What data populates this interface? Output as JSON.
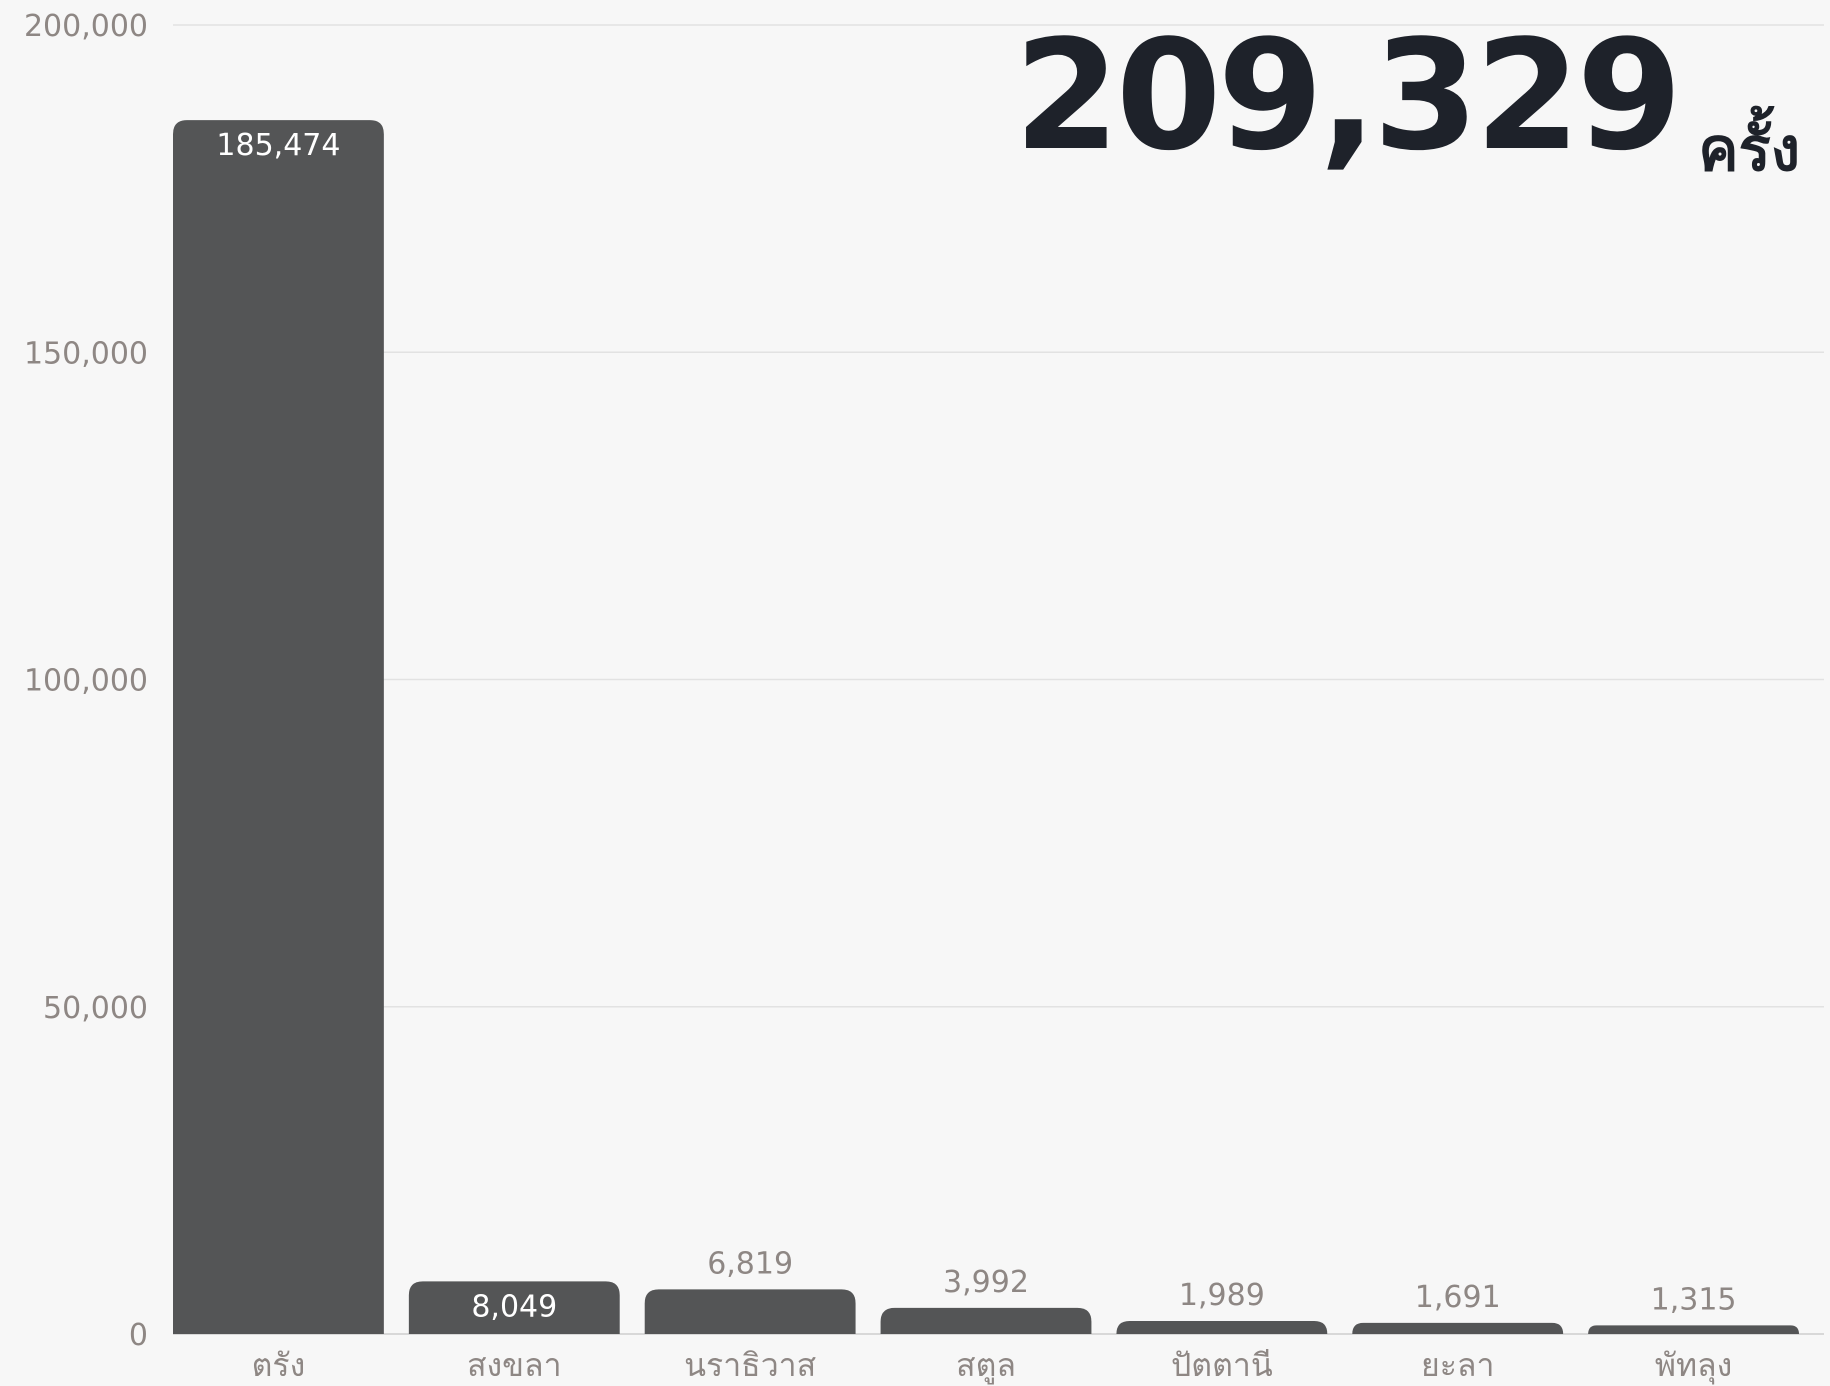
{
  "headline": {
    "total": "209,329",
    "unit": "ครั้ง"
  },
  "colors": {
    "bar": "#545556",
    "inside_label": "#ffffff",
    "outside_label": "#8e8784",
    "headline": "#1e222a"
  },
  "chart_data": {
    "type": "bar",
    "categories": [
      "ตรัง",
      "สงขลา",
      "นราธิวาส",
      "สตูล",
      "ปัตตานี",
      "ยะลา",
      "พัทลุง"
    ],
    "values": [
      185474,
      8049,
      6819,
      3992,
      1989,
      1691,
      1315
    ],
    "value_labels": [
      "185,474",
      "8,049",
      "6,819",
      "3,992",
      "1,989",
      "1,691",
      "1,315"
    ],
    "ylim": [
      0,
      200000
    ],
    "yticks": [
      0,
      50000,
      100000,
      150000,
      200000
    ],
    "ytick_labels": [
      "0",
      "50,000",
      "100,000",
      "150,000",
      "200,000"
    ],
    "grid": true,
    "title": "",
    "xlabel": "",
    "ylabel": ""
  }
}
